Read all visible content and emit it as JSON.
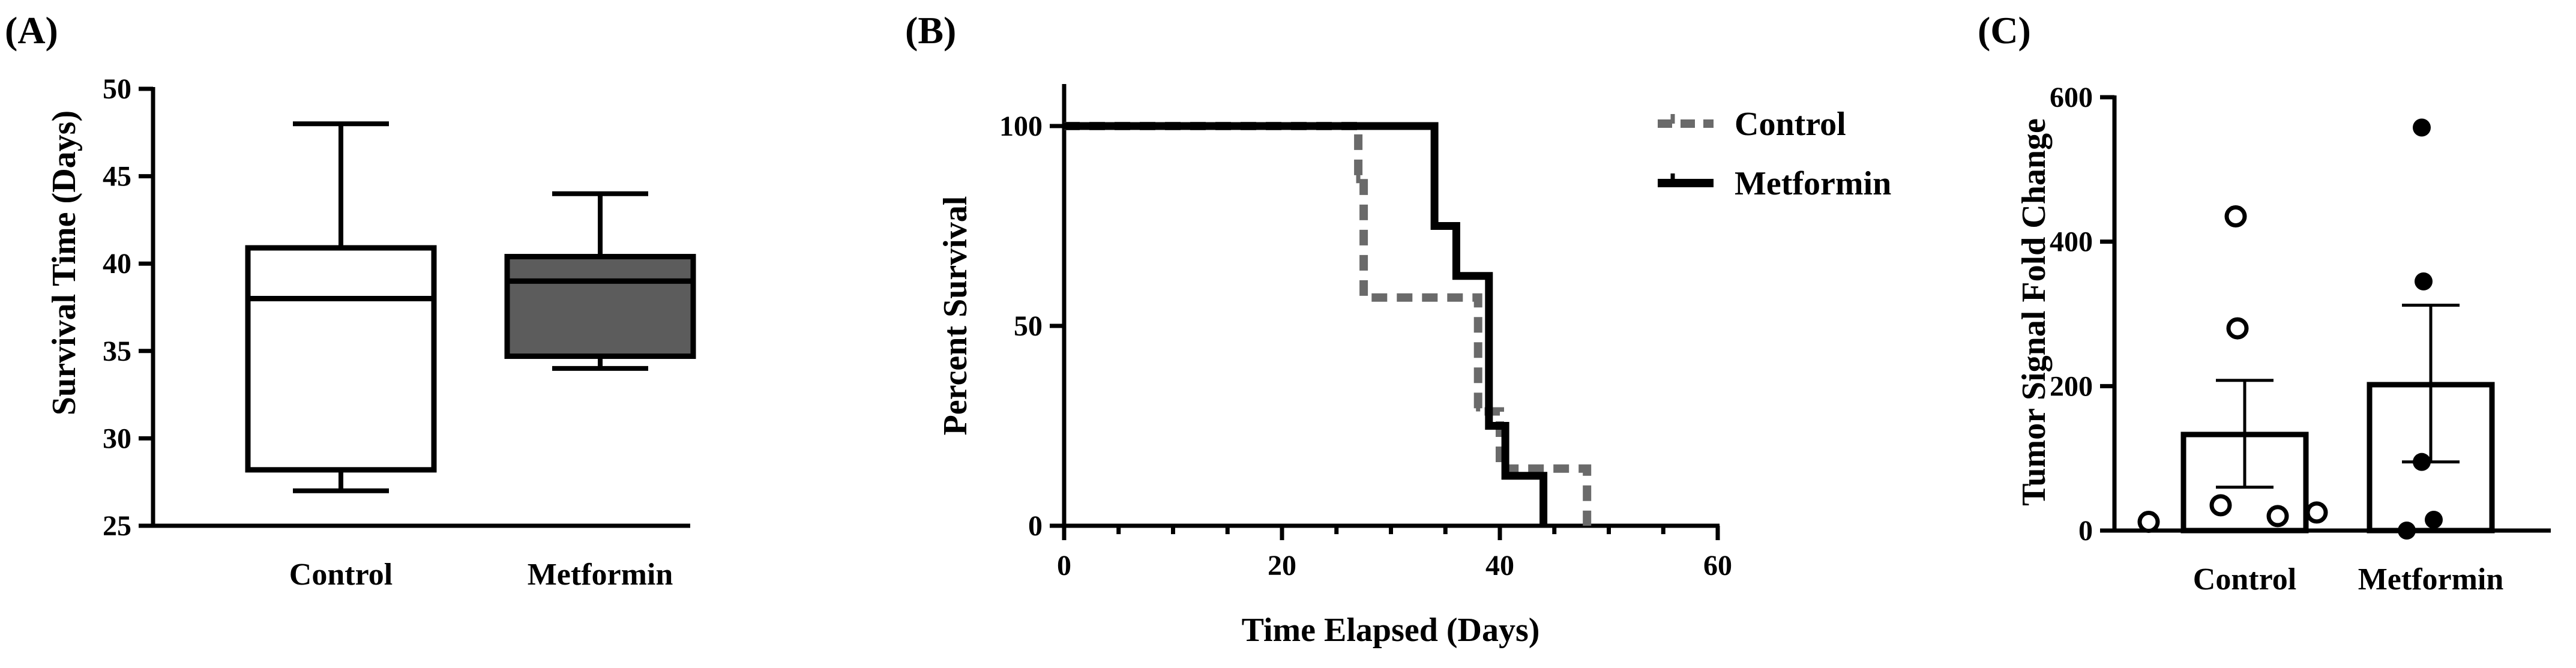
{
  "colors": {
    "ink": "#000000",
    "gray": "#6a6a6a",
    "box_fill": "#5c5c5c"
  },
  "chart_data": [
    {
      "panel": "(A)",
      "type": "box",
      "categories": [
        "Control",
        "Metformin"
      ],
      "boxes": [
        {
          "name": "Control",
          "min": 27,
          "q1": 28.2,
          "median": 38,
          "q3": 40.9,
          "max": 48,
          "fill": "white"
        },
        {
          "name": "Metformin",
          "min": 34,
          "q1": 34.7,
          "median": 39,
          "q3": 40.4,
          "max": 44,
          "fill": "gray"
        }
      ],
      "ylabel": "Survival Time  (Days)",
      "ylim": [
        25,
        50
      ],
      "yticks": [
        25,
        30,
        35,
        40,
        45,
        50
      ]
    },
    {
      "panel": "(B)",
      "type": "line",
      "subtype": "step",
      "xlabel": "Time Elapsed (Days)",
      "ylabel": "Percent Survival",
      "xlim": [
        0,
        60
      ],
      "ylim": [
        0,
        100
      ],
      "xticks": [
        0,
        20,
        40,
        60
      ],
      "yticks": [
        0,
        50,
        100
      ],
      "legend_position": "top-right",
      "series": [
        {
          "name": "Control",
          "style": "dashed-gray",
          "steps": [
            [
              0,
              100
            ],
            [
              27,
              100
            ],
            [
              27,
              85.7
            ],
            [
              27.5,
              85.7
            ],
            [
              27.5,
              57.1
            ],
            [
              38,
              57.1
            ],
            [
              38,
              28.6
            ],
            [
              40,
              28.6
            ],
            [
              40,
              14.3
            ],
            [
              48,
              14.3
            ],
            [
              48,
              0
            ]
          ],
          "censor_marks": [
            [
              27,
              85.7
            ],
            [
              38,
              28.6
            ],
            [
              48,
              0
            ]
          ]
        },
        {
          "name": "Metformin",
          "style": "solid-black",
          "steps": [
            [
              0,
              100
            ],
            [
              34,
              100
            ],
            [
              34,
              75
            ],
            [
              36,
              75
            ],
            [
              36,
              62.5
            ],
            [
              39,
              62.5
            ],
            [
              39,
              25
            ],
            [
              40.5,
              25
            ],
            [
              40.5,
              12.5
            ],
            [
              44,
              12.5
            ],
            [
              44,
              0
            ]
          ],
          "censor_marks": []
        }
      ]
    },
    {
      "panel": "(C)",
      "type": "bar",
      "categories": [
        "Control",
        "Metformin"
      ],
      "values": [
        133,
        202
      ],
      "error": [
        [
          60,
          208
        ],
        [
          95,
          312
        ]
      ],
      "points": [
        {
          "category": "Control",
          "values": [
            12,
            35,
            20,
            25,
            280,
            435
          ],
          "marker": "open-circle"
        },
        {
          "category": "Metformin",
          "values": [
            0,
            15,
            95,
            345,
            558
          ],
          "marker": "filled-circle"
        }
      ],
      "ylabel": "Tumor Signal Fold Change",
      "ylim": [
        0,
        600
      ],
      "yticks": [
        0,
        200,
        400,
        600
      ]
    }
  ]
}
